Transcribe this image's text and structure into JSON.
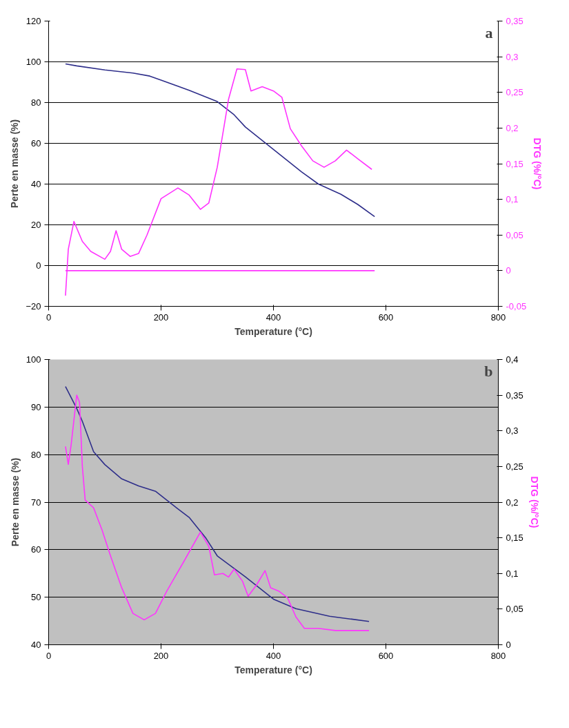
{
  "chart_data": [
    {
      "type": "line",
      "xlabel": "Temperature (°C)",
      "ylabel": "Perte en masse (%)",
      "y2label": "DTG (%/°C)",
      "annotations": [
        "a"
      ],
      "xlim": [
        0,
        800
      ],
      "xticks": [
        0,
        200,
        400,
        600,
        800
      ],
      "ylim": [
        -20,
        120
      ],
      "yticks": [
        -20,
        0,
        20,
        40,
        60,
        80,
        100,
        120
      ],
      "y2lim": [
        -0.05,
        0.35
      ],
      "y2ticks": [
        {
          "value": -0.05,
          "label": "-0,05"
        },
        0,
        {
          "value": 0.05,
          "label": "0,05"
        },
        {
          "value": 0.1,
          "label": "0,1"
        },
        {
          "value": 0.15,
          "label": "0,15"
        },
        {
          "value": 0.2,
          "label": "0,2"
        },
        {
          "value": 0.25,
          "label": "0,25"
        },
        {
          "value": 0.3,
          "label": "0,3"
        },
        {
          "value": 0.35,
          "label": "0,35"
        }
      ],
      "grid": "y",
      "marker": "none",
      "line_style": "solid",
      "series": [
        {
          "color": "#2e2e8a",
          "x": [
            30,
            50,
            100,
            150,
            180,
            200,
            250,
            300,
            330,
            350,
            400,
            450,
            480,
            520,
            550,
            580
          ],
          "values": [
            99,
            98,
            96,
            94.5,
            93,
            91,
            86,
            80.5,
            74,
            68,
            57,
            46,
            40,
            35,
            30,
            24
          ]
        },
        {
          "color": "#ff33ff",
          "axis": "y2",
          "x": [
            30,
            35,
            45,
            60,
            75,
            100,
            110,
            120,
            130,
            145,
            160,
            175,
            200,
            230,
            250,
            270,
            285,
            300,
            320,
            335,
            350,
            360,
            380,
            400,
            415,
            430,
            450,
            470,
            490,
            510,
            530,
            550,
            575
          ],
          "values": [
            -0.035,
            0.03,
            0.069,
            0.041,
            0.027,
            0.016,
            0.027,
            0.056,
            0.03,
            0.02,
            0.024,
            0.05,
            0.101,
            0.116,
            0.106,
            0.086,
            0.095,
            0.145,
            0.24,
            0.283,
            0.282,
            0.252,
            0.258,
            0.252,
            0.243,
            0.199,
            0.175,
            0.154,
            0.145,
            0.154,
            0.169,
            0.157,
            0.142
          ]
        },
        {
          "color": "#ff33ff",
          "axis": "y2",
          "x": [
            30,
            580
          ],
          "values": [
            0,
            0
          ]
        }
      ]
    },
    {
      "type": "line",
      "xlabel": "Temperature (°C)",
      "ylabel": "Perte en masse (%)",
      "y2label": "DTG (%/°C)",
      "annotations": [
        "b"
      ],
      "xlim": [
        0,
        800
      ],
      "xticks": [
        0,
        200,
        400,
        600,
        800
      ],
      "ylim": [
        40,
        100
      ],
      "yticks": [
        40,
        50,
        60,
        70,
        80,
        90,
        100
      ],
      "y2lim": [
        0,
        0.4
      ],
      "y2ticks": [
        0,
        {
          "value": 0.05,
          "label": "0,05"
        },
        {
          "value": 0.1,
          "label": "0,1"
        },
        {
          "value": 0.15,
          "label": "0,15"
        },
        {
          "value": 0.2,
          "label": "0,2"
        },
        {
          "value": 0.25,
          "label": "0,25"
        },
        {
          "value": 0.3,
          "label": "0,3"
        },
        {
          "value": 0.35,
          "label": "0,35"
        },
        {
          "value": 0.4,
          "label": "0,4"
        }
      ],
      "grid": "y",
      "marker": "none",
      "line_style": "solid",
      "series": [
        {
          "color": "#2e2e8a",
          "x": [
            30,
            50,
            60,
            80,
            100,
            130,
            160,
            190,
            220,
            250,
            280,
            300,
            350,
            400,
            440,
            500,
            570
          ],
          "values": [
            94.3,
            89.7,
            87,
            80.6,
            77.9,
            74.9,
            73.4,
            72.3,
            69.5,
            66.8,
            62.4,
            58.7,
            54.3,
            49.6,
            47.6,
            46,
            44.9
          ]
        },
        {
          "color": "#ff33ff",
          "axis": "y2",
          "x": [
            30,
            35,
            40,
            50,
            55,
            60,
            65,
            80,
            95,
            110,
            130,
            150,
            170,
            190,
            210,
            240,
            270,
            285,
            295,
            310,
            320,
            330,
            345,
            355,
            370,
            385,
            395,
            410,
            425,
            440,
            455,
            480,
            510,
            570
          ],
          "values": [
            0.278,
            0.253,
            0.28,
            0.35,
            0.34,
            0.25,
            0.203,
            0.192,
            0.161,
            0.125,
            0.08,
            0.044,
            0.035,
            0.044,
            0.075,
            0.116,
            0.158,
            0.138,
            0.098,
            0.1,
            0.095,
            0.106,
            0.089,
            0.068,
            0.084,
            0.104,
            0.08,
            0.075,
            0.066,
            0.039,
            0.023,
            0.023,
            0.02,
            0.02
          ]
        }
      ]
    }
  ]
}
